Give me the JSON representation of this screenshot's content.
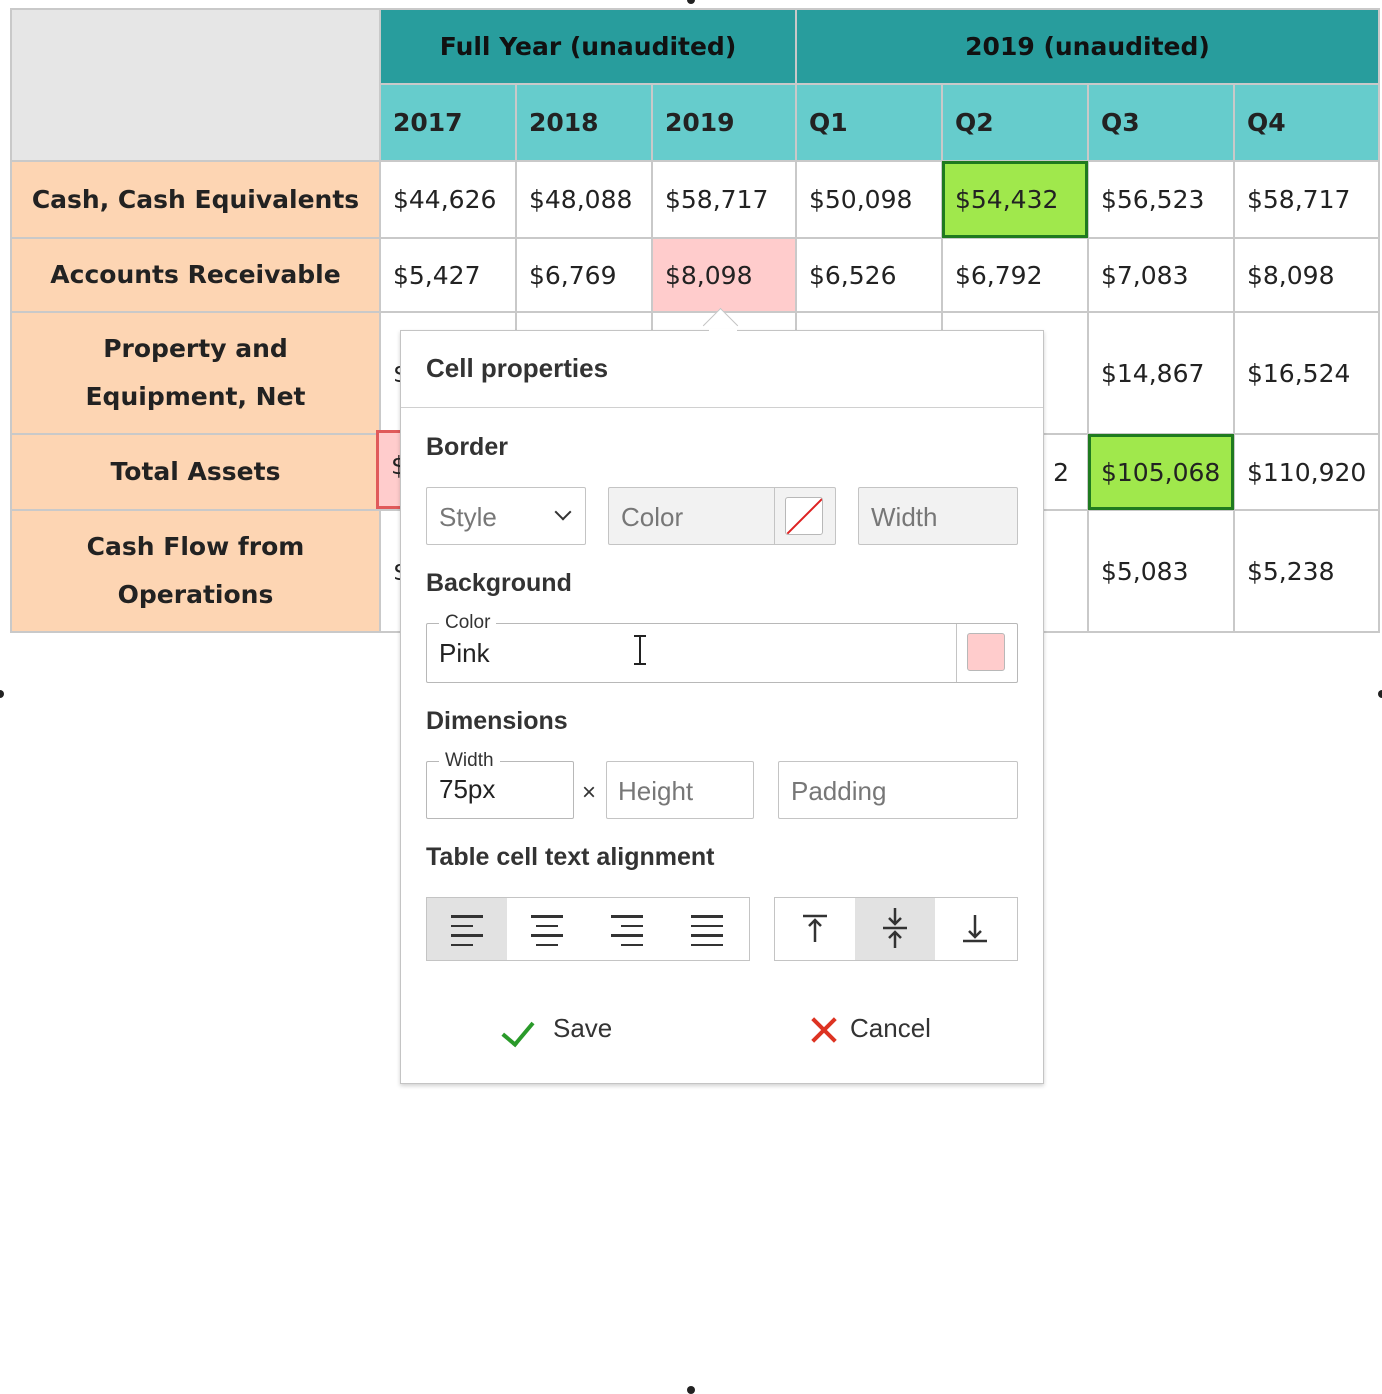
{
  "table": {
    "group_headers": [
      "Full Year (unaudited)",
      "2019 (unaudited)"
    ],
    "column_headers": [
      "2017",
      "2018",
      "2019",
      "Q1",
      "Q2",
      "Q3",
      "Q4"
    ],
    "rows": [
      {
        "label": "Cash, Cash Equivalents",
        "cells": [
          "$44,626",
          "$48,088",
          "$58,717",
          "$50,098",
          "$54,432",
          "$56,523",
          "$58,717"
        ]
      },
      {
        "label": "Accounts Receivable",
        "cells": [
          "$5,427",
          "$6,769",
          "$8,098",
          "$6,526",
          "$6,792",
          "$7,083",
          "$8,098"
        ]
      },
      {
        "label": "Property and Equipment, Net",
        "cells": [
          "$",
          "",
          "",
          "",
          "",
          "$14,867",
          "$16,524"
        ]
      },
      {
        "label": "Total Assets",
        "cells": [
          "$",
          "",
          "",
          "",
          "2",
          "$105,068",
          "$110,920"
        ]
      },
      {
        "label": "Cash Flow from Operations",
        "cells": [
          "$",
          "",
          "",
          "",
          "",
          "$5,083",
          "$5,238"
        ]
      }
    ],
    "colors": {
      "group_header": "#289d9d",
      "year_header": "#66cccc",
      "row_header": "#fdd5b3",
      "pink_cell": "#ffcccc",
      "green_cell": "#a0e84c"
    }
  },
  "panel": {
    "title": "Cell properties",
    "border": {
      "section": "Border",
      "style_placeholder": "Style",
      "color_placeholder": "Color",
      "width_placeholder": "Width"
    },
    "background": {
      "section": "Background",
      "color_label": "Color",
      "color_value": "Pink",
      "swatch_color": "#ffcccc"
    },
    "dimensions": {
      "section": "Dimensions",
      "width_label": "Width",
      "width_value": "75px",
      "times": "×",
      "height_placeholder": "Height",
      "padding_placeholder": "Padding"
    },
    "alignment": {
      "section": "Table cell text alignment",
      "horizontal": [
        "align-left-icon",
        "align-center-icon",
        "align-right-icon",
        "align-justify-icon"
      ],
      "vertical": [
        "align-top-icon",
        "align-middle-icon",
        "align-bottom-icon"
      ],
      "selected_horizontal": "align-left-icon",
      "selected_vertical": "align-middle-icon"
    },
    "save_label": "Save",
    "cancel_label": "Cancel"
  }
}
